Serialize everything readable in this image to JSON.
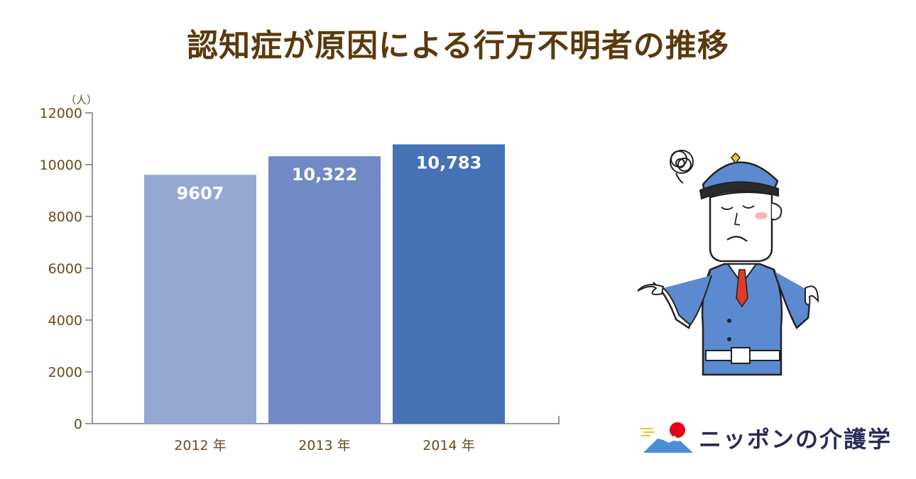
{
  "chart_data": {
    "type": "bar",
    "title": "認知症が原因による行方不明者の推移",
    "unit": "（人）",
    "categories": [
      "2012 年",
      "2013 年",
      "2014 年"
    ],
    "values": [
      9607,
      10322,
      10783
    ],
    "value_labels": [
      "9607",
      "10,322",
      "10,783"
    ],
    "colors": [
      "#95a8d4",
      "#7189c5",
      "#4672b6"
    ],
    "ylim": [
      0,
      12000
    ],
    "yticks": [
      0,
      2000,
      4000,
      6000,
      8000,
      10000,
      12000
    ],
    "ytick_labels": [
      "0",
      "2000",
      "4000",
      "6000",
      "8000",
      "10000",
      "12000"
    ],
    "grid": false,
    "legend": "none"
  },
  "illustration": {
    "subject": "confused-police-officer-icon",
    "uniform_color": "#5b8ad0"
  },
  "logo": {
    "text": "ニッポンの介護学",
    "accent": "#e60012"
  }
}
